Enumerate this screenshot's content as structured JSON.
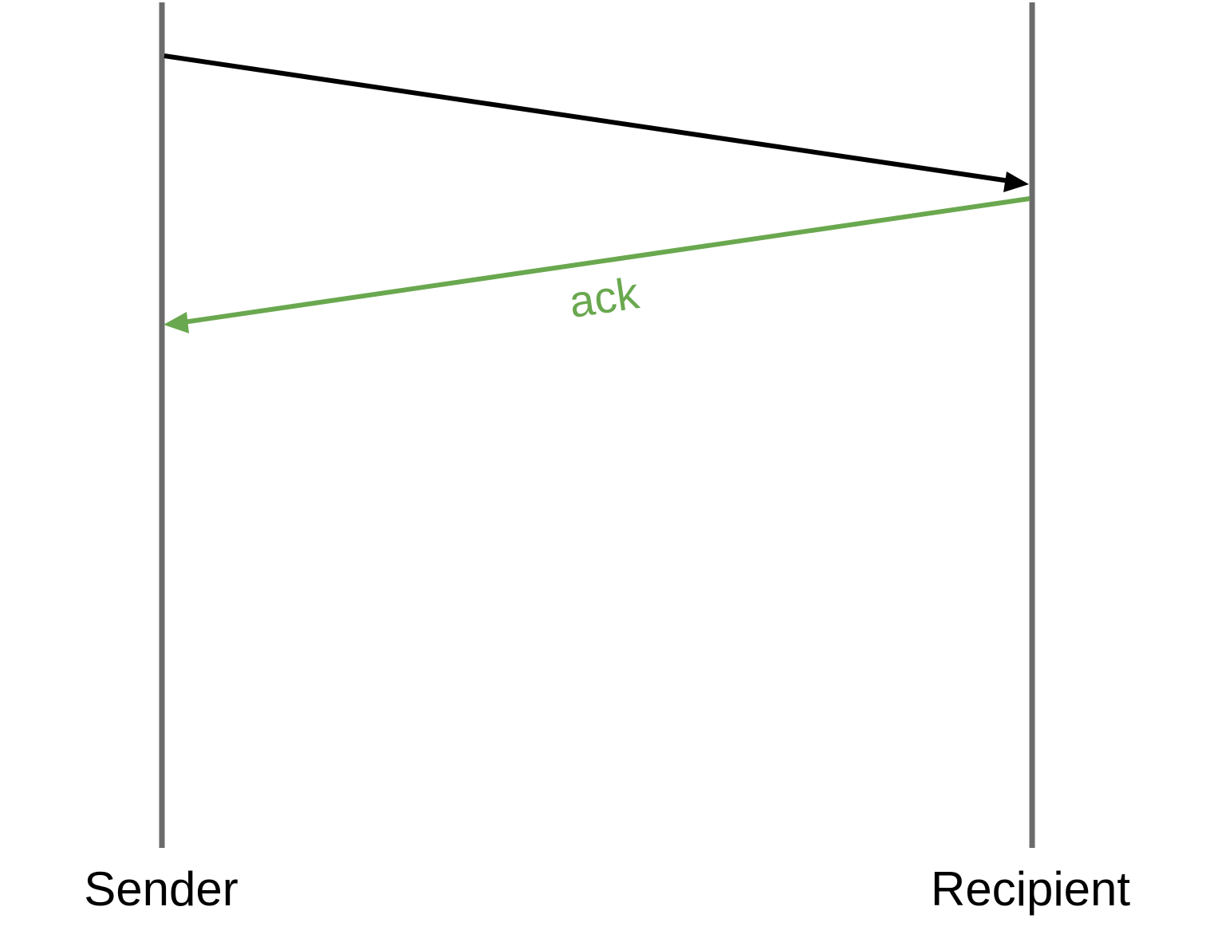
{
  "participants": {
    "sender": {
      "label": "Sender"
    },
    "recipient": {
      "label": "Recipient"
    }
  },
  "messages": [
    {
      "from": "sender",
      "to": "recipient",
      "label": "",
      "color": "#000000"
    },
    {
      "from": "recipient",
      "to": "sender",
      "label": "ack",
      "color": "#6aa84f"
    }
  ],
  "colors": {
    "lifeline": "#6b6b6b",
    "message": "#000000",
    "ack": "#6aa84f"
  }
}
